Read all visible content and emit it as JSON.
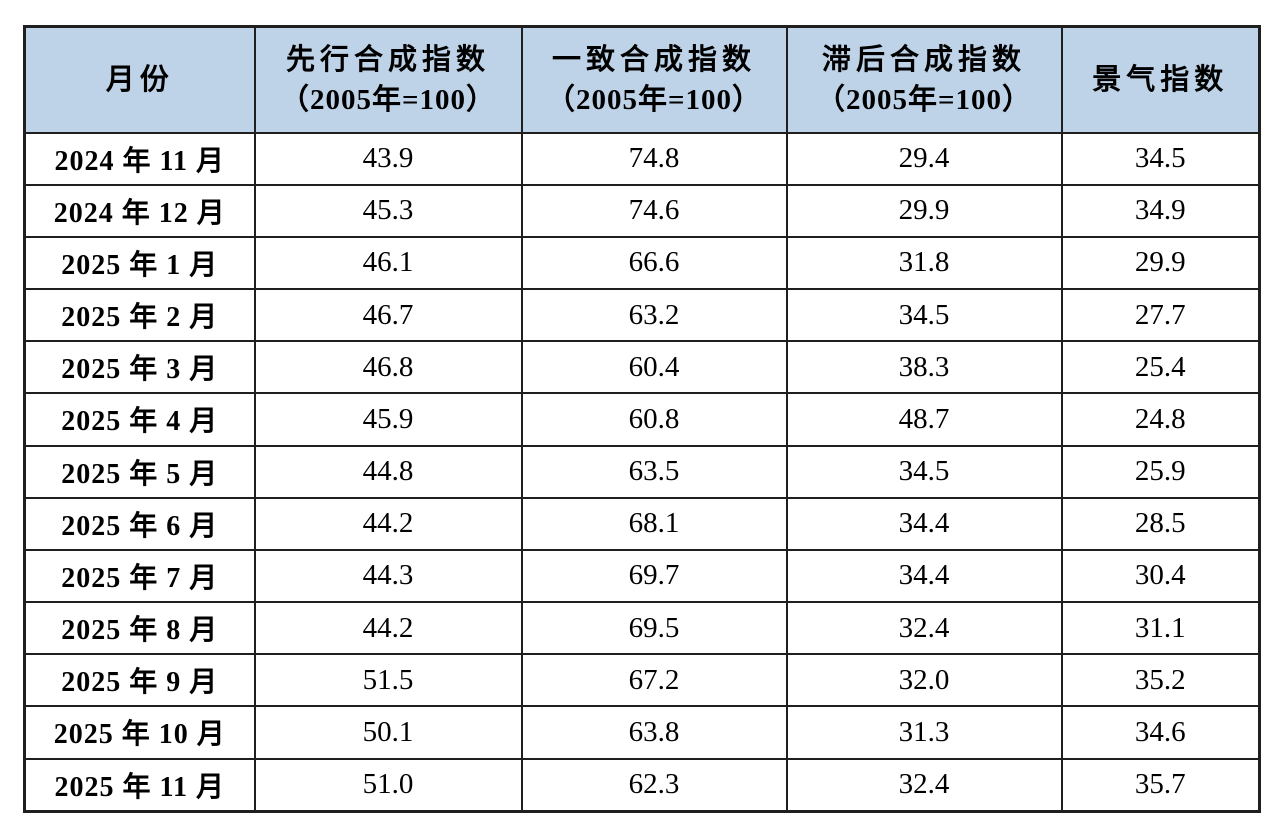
{
  "colors": {
    "header_bg": "#bed3e8",
    "border": "#1f1f1f",
    "text": "#000000",
    "page_bg": "#ffffff"
  },
  "table": {
    "columns": [
      {
        "title": "月份",
        "subtitle": ""
      },
      {
        "title": "先行合成指数",
        "subtitle": "（2005年=100）"
      },
      {
        "title": "一致合成指数",
        "subtitle": "（2005年=100）"
      },
      {
        "title": "滞后合成指数",
        "subtitle": "（2005年=100）"
      },
      {
        "title": "景气指数",
        "subtitle": ""
      }
    ],
    "rows": [
      {
        "month": "2024 年 11 月",
        "leading": "43.9",
        "coincident": "74.8",
        "lagging": "29.4",
        "prosperity": "34.5"
      },
      {
        "month": "2024 年 12 月",
        "leading": "45.3",
        "coincident": "74.6",
        "lagging": "29.9",
        "prosperity": "34.9"
      },
      {
        "month": "2025 年 1 月",
        "leading": "46.1",
        "coincident": "66.6",
        "lagging": "31.8",
        "prosperity": "29.9"
      },
      {
        "month": "2025 年 2 月",
        "leading": "46.7",
        "coincident": "63.2",
        "lagging": "34.5",
        "prosperity": "27.7"
      },
      {
        "month": "2025 年 3 月",
        "leading": "46.8",
        "coincident": "60.4",
        "lagging": "38.3",
        "prosperity": "25.4"
      },
      {
        "month": "2025 年 4 月",
        "leading": "45.9",
        "coincident": "60.8",
        "lagging": "48.7",
        "prosperity": "24.8"
      },
      {
        "month": "2025 年 5 月",
        "leading": "44.8",
        "coincident": "63.5",
        "lagging": "34.5",
        "prosperity": "25.9"
      },
      {
        "month": "2025 年 6 月",
        "leading": "44.2",
        "coincident": "68.1",
        "lagging": "34.4",
        "prosperity": "28.5"
      },
      {
        "month": "2025 年 7 月",
        "leading": "44.3",
        "coincident": "69.7",
        "lagging": "34.4",
        "prosperity": "30.4"
      },
      {
        "month": "2025 年 8 月",
        "leading": "44.2",
        "coincident": "69.5",
        "lagging": "32.4",
        "prosperity": "31.1"
      },
      {
        "month": "2025 年 9 月",
        "leading": "51.5",
        "coincident": "67.2",
        "lagging": "32.0",
        "prosperity": "35.2"
      },
      {
        "month": "2025 年 10 月",
        "leading": "50.1",
        "coincident": "63.8",
        "lagging": "31.3",
        "prosperity": "34.6"
      },
      {
        "month": "2025 年 11 月",
        "leading": "51.0",
        "coincident": "62.3",
        "lagging": "32.4",
        "prosperity": "35.7"
      }
    ]
  },
  "chart_data": {
    "type": "table",
    "title": "",
    "columns": [
      "月份",
      "先行合成指数（2005年=100）",
      "一致合成指数（2005年=100）",
      "滞后合成指数（2005年=100）",
      "景气指数"
    ],
    "categories": [
      "2024年11月",
      "2024年12月",
      "2025年1月",
      "2025年2月",
      "2025年3月",
      "2025年4月",
      "2025年5月",
      "2025年6月",
      "2025年7月",
      "2025年8月",
      "2025年9月",
      "2025年10月",
      "2025年11月"
    ],
    "series": [
      {
        "name": "先行合成指数（2005年=100）",
        "values": [
          43.9,
          45.3,
          46.1,
          46.7,
          46.8,
          45.9,
          44.8,
          44.2,
          44.3,
          44.2,
          51.5,
          50.1,
          51.0
        ]
      },
      {
        "name": "一致合成指数（2005年=100）",
        "values": [
          74.8,
          74.6,
          66.6,
          63.2,
          60.4,
          60.8,
          63.5,
          68.1,
          69.7,
          69.5,
          67.2,
          63.8,
          62.3
        ]
      },
      {
        "name": "滞后合成指数（2005年=100）",
        "values": [
          29.4,
          29.9,
          31.8,
          34.5,
          38.3,
          48.7,
          34.5,
          34.4,
          34.4,
          32.4,
          32.0,
          31.3,
          32.4
        ]
      },
      {
        "name": "景气指数",
        "values": [
          34.5,
          34.9,
          29.9,
          27.7,
          25.4,
          24.8,
          25.9,
          28.5,
          30.4,
          31.1,
          35.2,
          34.6,
          35.7
        ]
      }
    ]
  }
}
